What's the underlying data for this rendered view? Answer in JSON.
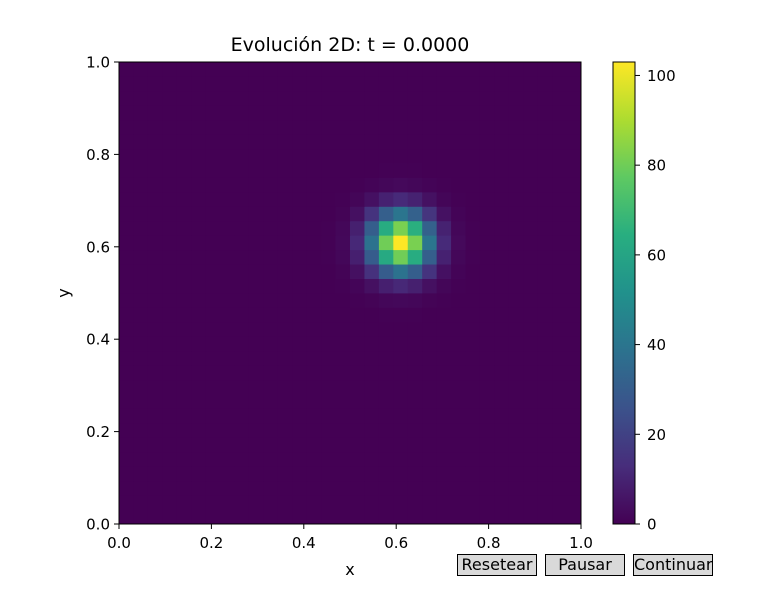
{
  "chart_data": {
    "type": "heatmap",
    "title": "Evolución 2D: t = 0.0000",
    "xlabel": "x",
    "ylabel": "y",
    "xlim": [
      0.0,
      1.0
    ],
    "ylim": [
      0.0,
      1.0
    ],
    "x_ticks": [
      "0.0",
      "0.2",
      "0.4",
      "0.6",
      "0.8",
      "1.0"
    ],
    "y_ticks": [
      "0.0",
      "0.2",
      "0.4",
      "0.6",
      "0.8",
      "1.0"
    ],
    "colorbar": {
      "colormap": "viridis",
      "min": 0,
      "max": 103,
      "ticks": [
        "0",
        "20",
        "40",
        "60",
        "80",
        "100"
      ]
    },
    "grid": false,
    "grid_size": [
      32,
      32
    ],
    "peak": {
      "x": 0.61,
      "y": 0.61,
      "value": 103,
      "sigma": 0.045
    }
  },
  "controls": {
    "reset_label": "Resetear",
    "pause_label": "Pausar",
    "continue_label": "Continuar"
  }
}
